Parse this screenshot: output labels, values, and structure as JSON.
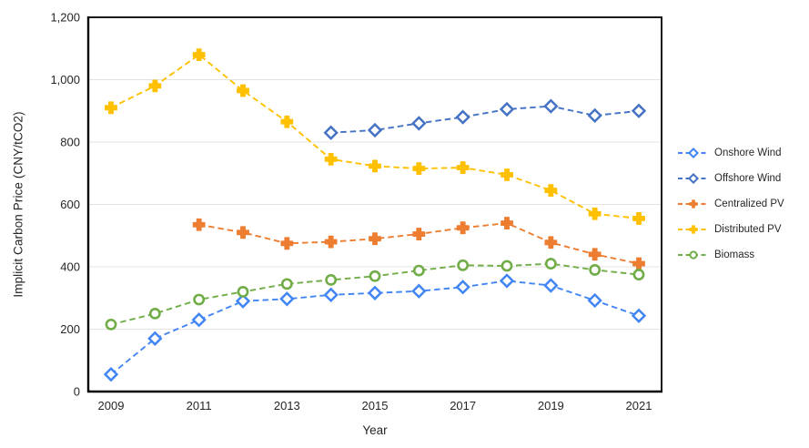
{
  "chart_data": {
    "type": "line",
    "title": "",
    "xlabel": "Year",
    "ylabel": "Implicit Carbon Price (CNY/tCO2)",
    "x": [
      2009,
      2010,
      2011,
      2012,
      2013,
      2014,
      2015,
      2016,
      2017,
      2018,
      2019,
      2020,
      2021
    ],
    "x_tick_years": [
      2009,
      2011,
      2013,
      2015,
      2017,
      2019,
      2021
    ],
    "x_tick_labels": [
      "2009",
      "2011",
      "2013",
      "2015",
      "2017",
      "2019",
      "2021"
    ],
    "ylim": [
      0,
      1200
    ],
    "y_ticks": [
      0,
      200,
      400,
      600,
      800,
      1000,
      1200
    ],
    "y_tick_labels": [
      "0",
      "200",
      "400",
      "600",
      "800",
      "1,000",
      "1,200"
    ],
    "grid": "horizontal-only",
    "line_style": "dashed",
    "legend_position": "right-center",
    "series": [
      {
        "name": "Onshore Wind",
        "slug": "onshore-wind",
        "color": "#4285f4",
        "marker": "diamond",
        "values": [
          55,
          170,
          230,
          290,
          297,
          310,
          316,
          322,
          335,
          355,
          340,
          292,
          243
        ]
      },
      {
        "name": "Offshore Wind",
        "slug": "offshore-wind",
        "color": "#4472c4",
        "marker": "diamond",
        "values": [
          null,
          null,
          null,
          null,
          null,
          830,
          838,
          860,
          880,
          905,
          915,
          885,
          900
        ]
      },
      {
        "name": "Centralized PV",
        "slug": "centralized-pv",
        "color": "#ed7d31",
        "marker": "plus",
        "values": [
          null,
          null,
          535,
          510,
          475,
          480,
          490,
          505,
          525,
          540,
          478,
          440,
          410
        ]
      },
      {
        "name": "Distributed PV",
        "slug": "distributed-pv",
        "color": "#ffc000",
        "marker": "plus",
        "values": [
          910,
          980,
          1080,
          965,
          865,
          745,
          723,
          715,
          718,
          695,
          645,
          570,
          555
        ]
      },
      {
        "name": "Biomass",
        "slug": "biomass",
        "color": "#70ad47",
        "marker": "circle",
        "values": [
          215,
          250,
          295,
          320,
          345,
          358,
          370,
          388,
          405,
          403,
          410,
          390,
          375
        ]
      }
    ]
  },
  "colors": {
    "grid": "#e3e3e3",
    "axis": "#000000",
    "text": "#262626",
    "plot_background": "#ffffff"
  }
}
